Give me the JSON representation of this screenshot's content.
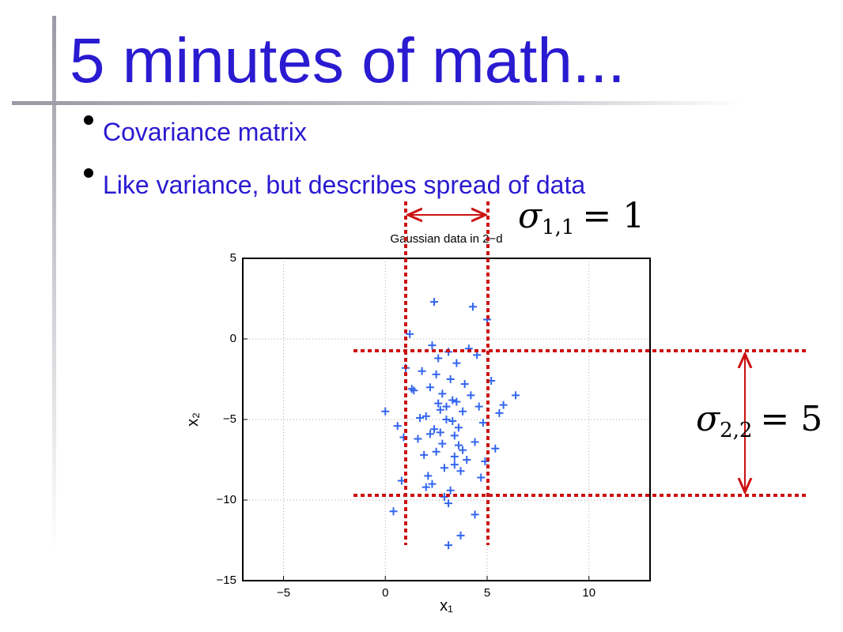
{
  "slide": {
    "title": "5 minutes of math...",
    "bullets": [
      "Covariance matrix",
      "Like variance, but describes spread of data"
    ]
  },
  "annotations": [
    {
      "symbol": "σ",
      "subscript": "1,1",
      "rhs": "= 1"
    },
    {
      "symbol": "σ",
      "subscript": "2,2",
      "rhs": "= 5"
    }
  ],
  "chart_data": {
    "type": "scatter",
    "title": "Gaussian data in 2−d",
    "xlabel": "x₁",
    "ylabel": "x₂",
    "marker": "+",
    "color": "#3366ee",
    "grid": true,
    "xlim": [
      -7,
      13
    ],
    "ylim": [
      -15,
      5
    ],
    "xticks": [
      {
        "value": -5,
        "label": "−5"
      },
      0,
      5,
      10
    ],
    "yticks": [
      5,
      0,
      {
        "value": -5,
        "label": "−5"
      },
      {
        "value": -10,
        "label": "−10"
      },
      {
        "value": -15,
        "label": "−15"
      }
    ],
    "x": [
      2.4,
      4.3,
      5.0,
      1.2,
      6.4,
      0.4,
      3.1,
      3.7,
      4.4,
      0.0,
      1.8,
      2.2,
      2.6,
      3.0,
      3.4,
      3.8,
      4.2,
      2.8,
      3.2,
      2.5,
      3.6,
      2.0,
      4.0,
      3.3,
      2.7,
      2.9,
      3.5,
      1.6,
      4.6,
      2.3,
      3.9,
      2.1,
      3.1,
      2.6,
      3.4,
      4.8,
      1.4,
      5.4,
      0.8,
      1.0,
      5.6,
      2.4,
      3.0,
      3.6,
      2.8,
      3.2,
      2.2,
      4.1,
      1.9,
      3.7,
      2.5,
      3.3,
      4.4,
      1.7,
      2.9,
      3.5,
      5.2,
      0.6,
      4.9,
      2.0,
      3.8,
      1.3,
      4.5,
      2.7,
      3.1,
      5.8,
      0.9,
      4.7,
      2.3,
      3.4
    ],
    "y": [
      2.3,
      2.0,
      1.2,
      0.3,
      -3.5,
      -10.7,
      -12.8,
      -12.2,
      -10.9,
      -4.5,
      -2.0,
      -3.0,
      -4.0,
      -5.0,
      -6.0,
      -4.5,
      -3.5,
      -6.5,
      -2.5,
      -7.0,
      -5.5,
      -4.8,
      -7.5,
      -3.8,
      -5.8,
      -8.0,
      -1.5,
      -6.2,
      -4.2,
      -9.0,
      -2.8,
      -8.5,
      -0.8,
      -1.2,
      -7.8,
      -5.2,
      -3.2,
      -6.8,
      -8.8,
      -1.8,
      -4.6,
      -5.6,
      -4.2,
      -6.6,
      -3.4,
      -9.4,
      -5.9,
      -0.6,
      -7.2,
      -8.2,
      -2.2,
      -5.1,
      -6.4,
      -4.9,
      -9.8,
      -3.9,
      -2.6,
      -5.4,
      -7.6,
      -9.2,
      -6.9,
      -3.1,
      -1.0,
      -4.4,
      -10.2,
      -4.1,
      -6.1,
      -8.6,
      -0.4,
      -7.3
    ]
  }
}
